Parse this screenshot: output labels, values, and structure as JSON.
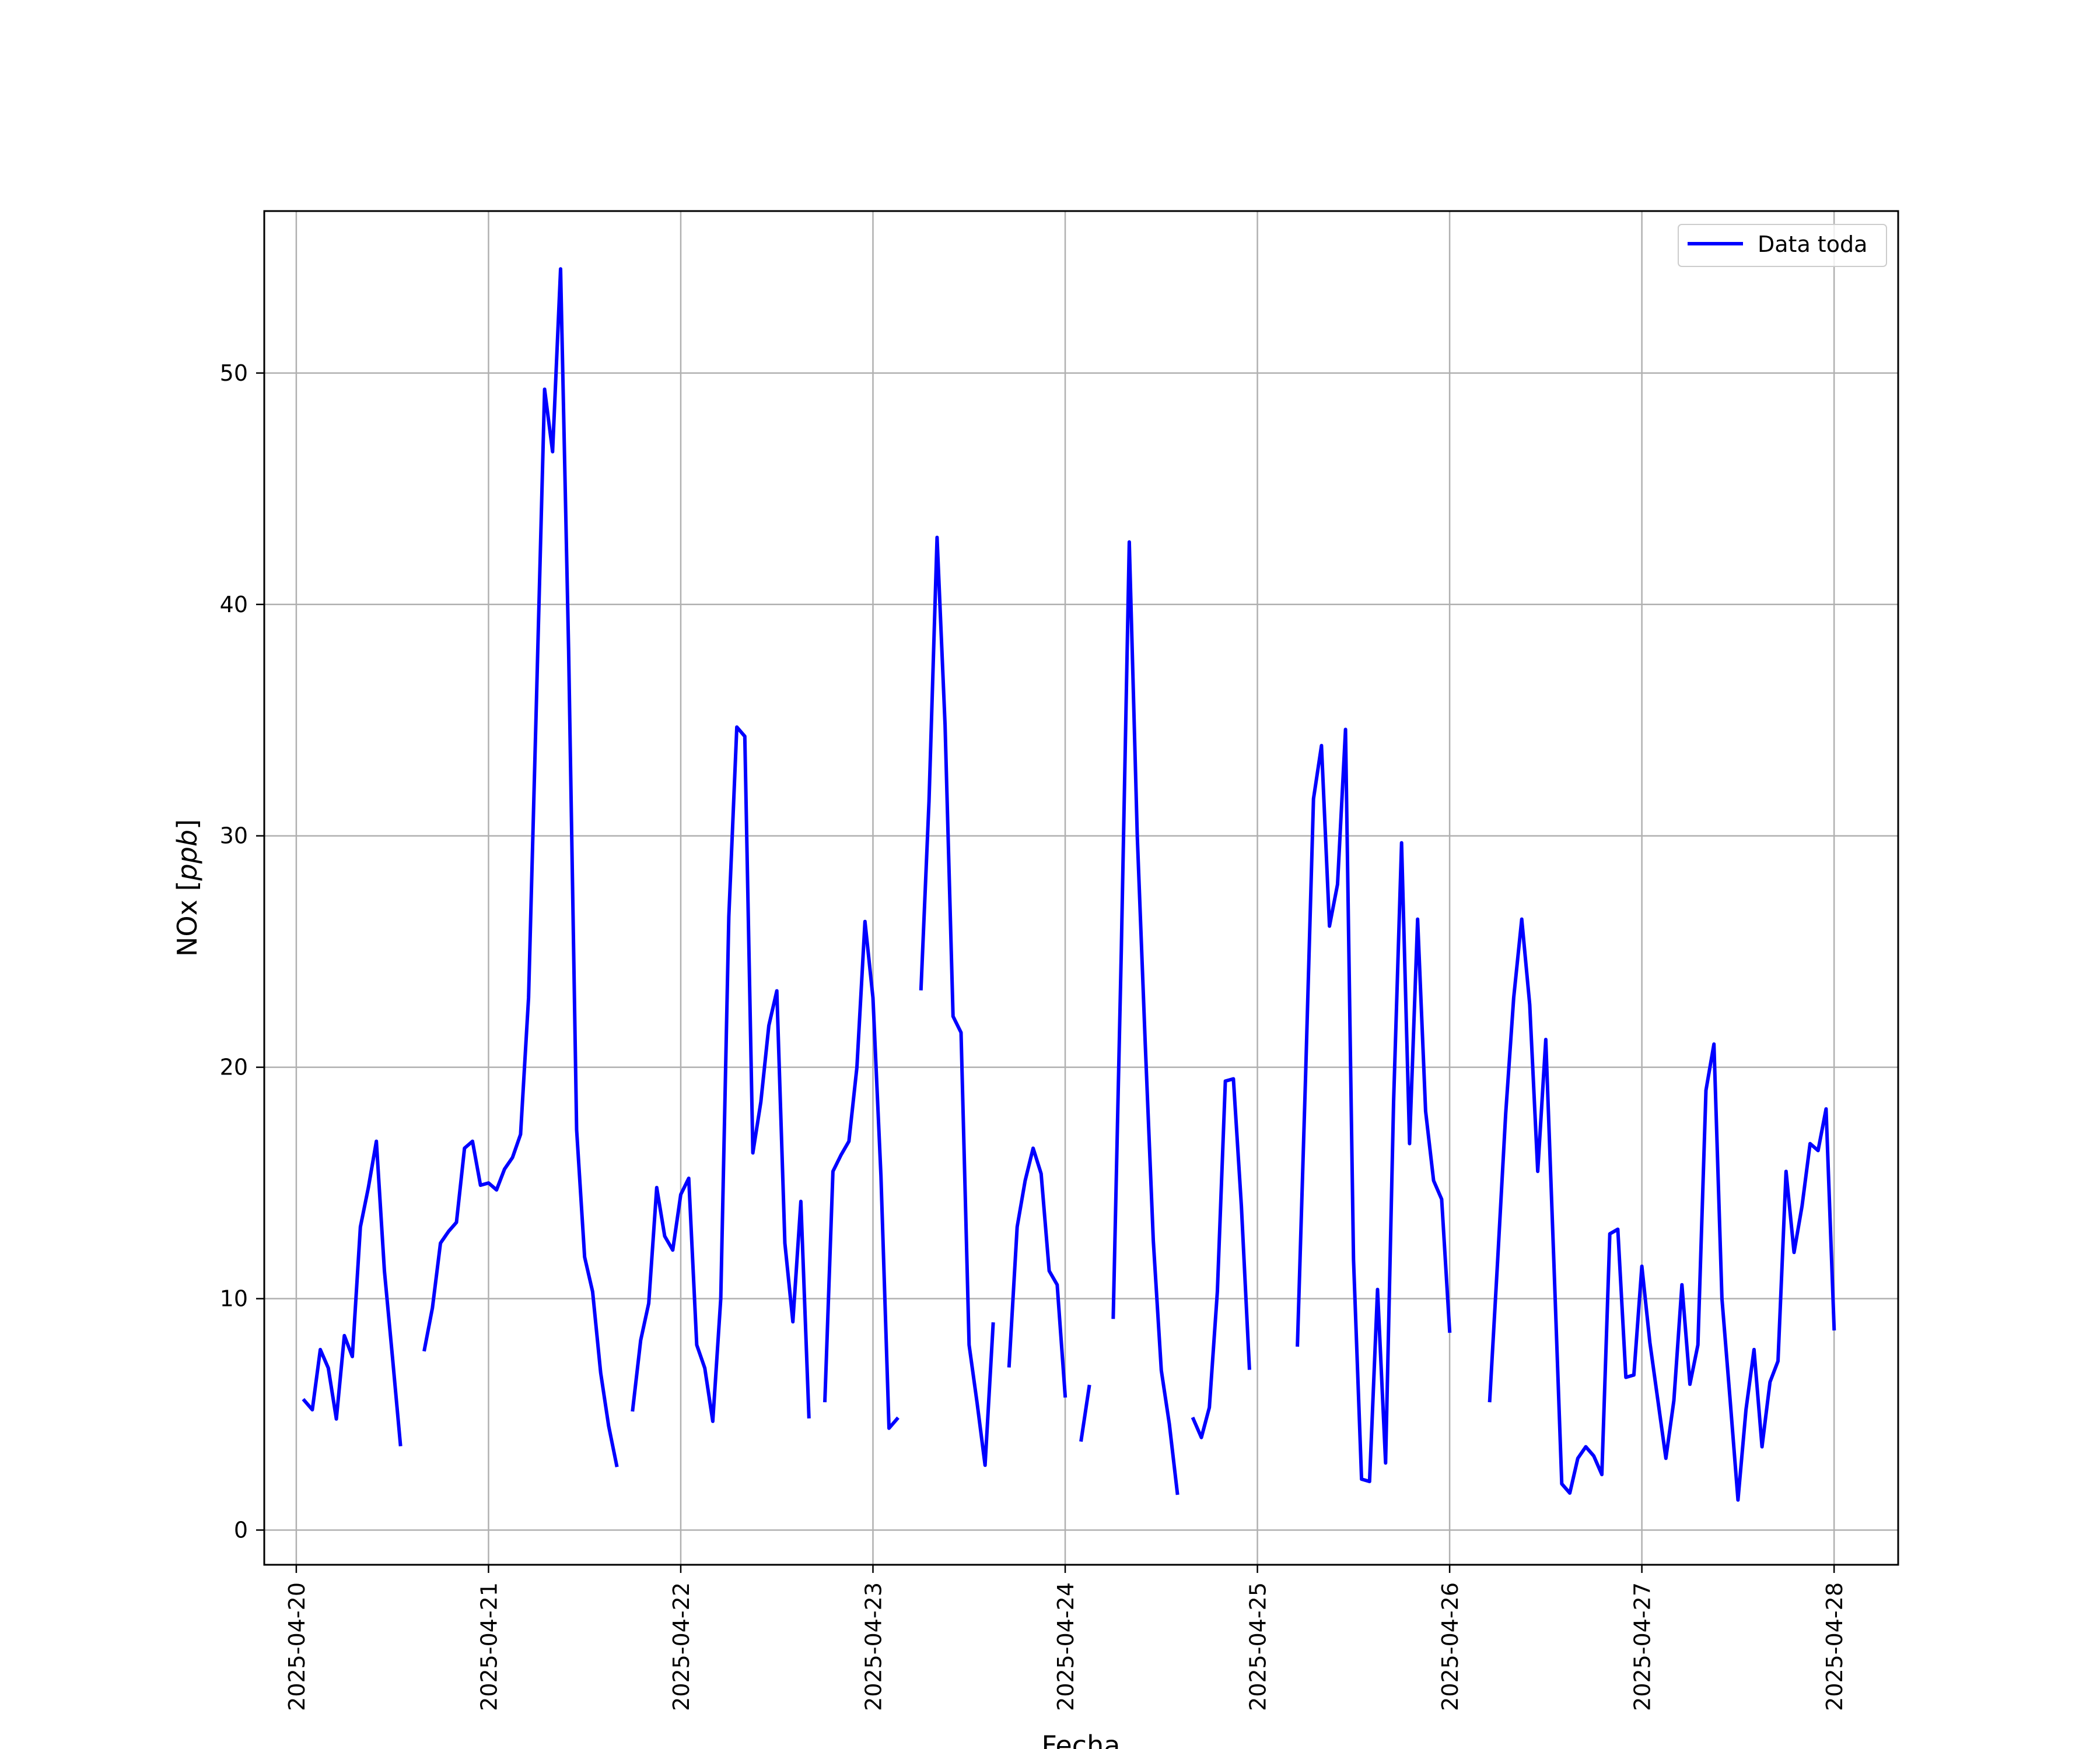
{
  "chart_data": {
    "type": "line",
    "title": "",
    "xlabel": "Fecha",
    "ylabel": "NOx [ppb]",
    "ylabel_parts": {
      "main": "NOx ",
      "open": "[",
      "unit": "ppb",
      "close": "]"
    },
    "xlim": [
      "2025-04-19T20:00",
      "2025-04-28T08:00"
    ],
    "ylim": [
      -1.5,
      57
    ],
    "x_ticks": [
      "2025-04-20",
      "2025-04-21",
      "2025-04-22",
      "2025-04-23",
      "2025-04-24",
      "2025-04-25",
      "2025-04-26",
      "2025-04-27",
      "2025-04-28"
    ],
    "y_ticks": [
      0,
      10,
      20,
      30,
      40,
      50
    ],
    "grid": true,
    "legend_position": "top-right",
    "series": [
      {
        "name": "Data toda",
        "color": "#0000ff",
        "points": [
          [
            "2025-04-20T01:00",
            5.6
          ],
          [
            "2025-04-20T02:00",
            5.2
          ],
          [
            "2025-04-20T03:00",
            7.8
          ],
          [
            "2025-04-20T04:00",
            7.0
          ],
          [
            "2025-04-20T05:00",
            4.8
          ],
          [
            "2025-04-20T06:00",
            8.4
          ],
          [
            "2025-04-20T07:00",
            7.5
          ],
          [
            "2025-04-20T08:00",
            13.1
          ],
          [
            "2025-04-20T09:00",
            14.8
          ],
          [
            "2025-04-20T10:00",
            16.8
          ],
          [
            "2025-04-20T11:00",
            11.2
          ],
          [
            "2025-04-20T12:00",
            7.5
          ],
          [
            "2025-04-20T13:00",
            3.7
          ],
          [
            "2025-04-20T14:00",
            null
          ],
          [
            "2025-04-20T15:00",
            null
          ],
          [
            "2025-04-20T16:00",
            7.8
          ],
          [
            "2025-04-20T17:00",
            9.6
          ],
          [
            "2025-04-20T18:00",
            12.4
          ],
          [
            "2025-04-20T19:00",
            12.9
          ],
          [
            "2025-04-20T20:00",
            13.3
          ],
          [
            "2025-04-20T21:00",
            16.5
          ],
          [
            "2025-04-20T22:00",
            16.8
          ],
          [
            "2025-04-20T23:00",
            14.9
          ],
          [
            "2025-04-21T00:00",
            15.0
          ],
          [
            "2025-04-21T01:00",
            14.7
          ],
          [
            "2025-04-21T02:00",
            15.6
          ],
          [
            "2025-04-21T03:00",
            16.1
          ],
          [
            "2025-04-21T04:00",
            17.1
          ],
          [
            "2025-04-21T05:00",
            23.0
          ],
          [
            "2025-04-21T06:00",
            36.0
          ],
          [
            "2025-04-21T07:00",
            49.3
          ],
          [
            "2025-04-21T08:00",
            46.6
          ],
          [
            "2025-04-21T09:00",
            54.5
          ],
          [
            "2025-04-21T10:00",
            38.0
          ],
          [
            "2025-04-21T11:00",
            17.3
          ],
          [
            "2025-04-21T12:00",
            11.8
          ],
          [
            "2025-04-21T13:00",
            10.3
          ],
          [
            "2025-04-21T14:00",
            6.8
          ],
          [
            "2025-04-21T15:00",
            4.5
          ],
          [
            "2025-04-21T16:00",
            2.8
          ],
          [
            "2025-04-21T17:00",
            null
          ],
          [
            "2025-04-21T18:00",
            5.2
          ],
          [
            "2025-04-21T19:00",
            8.2
          ],
          [
            "2025-04-21T20:00",
            9.8
          ],
          [
            "2025-04-21T21:00",
            14.8
          ],
          [
            "2025-04-21T22:00",
            12.7
          ],
          [
            "2025-04-21T23:00",
            12.1
          ],
          [
            "2025-04-22T00:00",
            14.5
          ],
          [
            "2025-04-22T01:00",
            15.2
          ],
          [
            "2025-04-22T02:00",
            8.0
          ],
          [
            "2025-04-22T03:00",
            7.0
          ],
          [
            "2025-04-22T04:00",
            4.7
          ],
          [
            "2025-04-22T05:00",
            10.0
          ],
          [
            "2025-04-22T06:00",
            26.5
          ],
          [
            "2025-04-22T07:00",
            34.7
          ],
          [
            "2025-04-22T08:00",
            34.3
          ],
          [
            "2025-04-22T09:00",
            16.3
          ],
          [
            "2025-04-22T10:00",
            18.5
          ],
          [
            "2025-04-22T11:00",
            21.8
          ],
          [
            "2025-04-22T12:00",
            23.3
          ],
          [
            "2025-04-22T13:00",
            12.4
          ],
          [
            "2025-04-22T14:00",
            9.0
          ],
          [
            "2025-04-22T15:00",
            14.2
          ],
          [
            "2025-04-22T16:00",
            4.9
          ],
          [
            "2025-04-22T17:00",
            null
          ],
          [
            "2025-04-22T18:00",
            5.6
          ],
          [
            "2025-04-22T19:00",
            15.5
          ],
          [
            "2025-04-22T20:00",
            16.2
          ],
          [
            "2025-04-22T21:00",
            16.8
          ],
          [
            "2025-04-22T22:00",
            20.0
          ],
          [
            "2025-04-22T23:00",
            26.3
          ],
          [
            "2025-04-23T00:00",
            23.0
          ],
          [
            "2025-04-23T01:00",
            15.3
          ],
          [
            "2025-04-23T02:00",
            4.4
          ],
          [
            "2025-04-23T03:00",
            4.8
          ],
          [
            "2025-04-23T04:00",
            null
          ],
          [
            "2025-04-23T05:00",
            null
          ],
          [
            "2025-04-23T06:00",
            23.4
          ],
          [
            "2025-04-23T07:00",
            31.5
          ],
          [
            "2025-04-23T08:00",
            42.9
          ],
          [
            "2025-04-23T09:00",
            34.8
          ],
          [
            "2025-04-23T10:00",
            22.2
          ],
          [
            "2025-04-23T11:00",
            21.5
          ],
          [
            "2025-04-23T12:00",
            8.0
          ],
          [
            "2025-04-23T13:00",
            5.5
          ],
          [
            "2025-04-23T14:00",
            2.8
          ],
          [
            "2025-04-23T15:00",
            8.9
          ],
          [
            "2025-04-23T16:00",
            null
          ],
          [
            "2025-04-23T17:00",
            7.1
          ],
          [
            "2025-04-23T18:00",
            13.1
          ],
          [
            "2025-04-23T19:00",
            15.1
          ],
          [
            "2025-04-23T20:00",
            16.5
          ],
          [
            "2025-04-23T21:00",
            15.4
          ],
          [
            "2025-04-23T22:00",
            11.2
          ],
          [
            "2025-04-23T23:00",
            10.6
          ],
          [
            "2025-04-24T00:00",
            5.8
          ],
          [
            "2025-04-24T01:00",
            null
          ],
          [
            "2025-04-24T02:00",
            3.9
          ],
          [
            "2025-04-24T03:00",
            6.2
          ],
          [
            "2025-04-24T04:00",
            null
          ],
          [
            "2025-04-24T05:00",
            null
          ],
          [
            "2025-04-24T06:00",
            9.2
          ],
          [
            "2025-04-24T07:00",
            25.0
          ],
          [
            "2025-04-24T08:00",
            42.7
          ],
          [
            "2025-04-24T09:00",
            30.0
          ],
          [
            "2025-04-24T10:00",
            21.0
          ],
          [
            "2025-04-24T11:00",
            12.5
          ],
          [
            "2025-04-24T12:00",
            6.9
          ],
          [
            "2025-04-24T13:00",
            4.6
          ],
          [
            "2025-04-24T14:00",
            1.6
          ],
          [
            "2025-04-24T15:00",
            null
          ],
          [
            "2025-04-24T16:00",
            4.8
          ],
          [
            "2025-04-24T17:00",
            4.0
          ],
          [
            "2025-04-24T18:00",
            5.3
          ],
          [
            "2025-04-24T19:00",
            10.3
          ],
          [
            "2025-04-24T20:00",
            19.4
          ],
          [
            "2025-04-24T21:00",
            19.5
          ],
          [
            "2025-04-24T22:00",
            14.0
          ],
          [
            "2025-04-24T23:00",
            7.0
          ],
          [
            "2025-04-25T00:00",
            null
          ],
          [
            "2025-04-25T01:00",
            null
          ],
          [
            "2025-04-25T02:00",
            null
          ],
          [
            "2025-04-25T03:00",
            null
          ],
          [
            "2025-04-25T04:00",
            null
          ],
          [
            "2025-04-25T05:00",
            8.0
          ],
          [
            "2025-04-25T06:00",
            19.5
          ],
          [
            "2025-04-25T07:00",
            31.6
          ],
          [
            "2025-04-25T08:00",
            33.9
          ],
          [
            "2025-04-25T09:00",
            26.1
          ],
          [
            "2025-04-25T10:00",
            27.9
          ],
          [
            "2025-04-25T11:00",
            34.6
          ],
          [
            "2025-04-25T12:00",
            11.7
          ],
          [
            "2025-04-25T13:00",
            2.2
          ],
          [
            "2025-04-25T14:00",
            2.1
          ],
          [
            "2025-04-25T15:00",
            10.4
          ],
          [
            "2025-04-25T16:00",
            2.9
          ],
          [
            "2025-04-25T17:00",
            18.5
          ],
          [
            "2025-04-25T18:00",
            29.7
          ],
          [
            "2025-04-25T19:00",
            16.7
          ],
          [
            "2025-04-25T20:00",
            26.4
          ],
          [
            "2025-04-25T21:00",
            18.1
          ],
          [
            "2025-04-25T22:00",
            15.1
          ],
          [
            "2025-04-25T23:00",
            14.3
          ],
          [
            "2025-04-26T00:00",
            8.6
          ],
          [
            "2025-04-26T01:00",
            null
          ],
          [
            "2025-04-26T02:00",
            null
          ],
          [
            "2025-04-26T03:00",
            null
          ],
          [
            "2025-04-26T04:00",
            null
          ],
          [
            "2025-04-26T05:00",
            5.6
          ],
          [
            "2025-04-26T06:00",
            11.7
          ],
          [
            "2025-04-26T07:00",
            18.0
          ],
          [
            "2025-04-26T08:00",
            23.0
          ],
          [
            "2025-04-26T09:00",
            26.4
          ],
          [
            "2025-04-26T10:00",
            22.7
          ],
          [
            "2025-04-26T11:00",
            15.5
          ],
          [
            "2025-04-26T12:00",
            21.2
          ],
          [
            "2025-04-26T13:00",
            11.7
          ],
          [
            "2025-04-26T14:00",
            2.0
          ],
          [
            "2025-04-26T15:00",
            1.6
          ],
          [
            "2025-04-26T16:00",
            3.1
          ],
          [
            "2025-04-26T17:00",
            3.6
          ],
          [
            "2025-04-26T18:00",
            3.2
          ],
          [
            "2025-04-26T19:00",
            2.4
          ],
          [
            "2025-04-26T20:00",
            12.8
          ],
          [
            "2025-04-26T21:00",
            13.0
          ],
          [
            "2025-04-26T22:00",
            6.6
          ],
          [
            "2025-04-26T23:00",
            6.7
          ],
          [
            "2025-04-27T00:00",
            11.4
          ],
          [
            "2025-04-27T01:00",
            8.1
          ],
          [
            "2025-04-27T02:00",
            5.6
          ],
          [
            "2025-04-27T03:00",
            3.1
          ],
          [
            "2025-04-27T04:00",
            5.6
          ],
          [
            "2025-04-27T05:00",
            10.6
          ],
          [
            "2025-04-27T06:00",
            6.3
          ],
          [
            "2025-04-27T07:00",
            8.0
          ],
          [
            "2025-04-27T08:00",
            19.0
          ],
          [
            "2025-04-27T09:00",
            21.0
          ],
          [
            "2025-04-27T10:00",
            10.0
          ],
          [
            "2025-04-27T11:00",
            5.7
          ],
          [
            "2025-04-27T12:00",
            1.3
          ],
          [
            "2025-04-27T13:00",
            5.2
          ],
          [
            "2025-04-27T14:00",
            7.8
          ],
          [
            "2025-04-27T15:00",
            3.6
          ],
          [
            "2025-04-27T16:00",
            6.4
          ],
          [
            "2025-04-27T17:00",
            7.3
          ],
          [
            "2025-04-27T18:00",
            15.5
          ],
          [
            "2025-04-27T19:00",
            12.0
          ],
          [
            "2025-04-27T20:00",
            14.0
          ],
          [
            "2025-04-27T21:00",
            16.7
          ],
          [
            "2025-04-27T22:00",
            16.4
          ],
          [
            "2025-04-27T23:00",
            18.2
          ],
          [
            "2025-04-28T00:00",
            8.7
          ]
        ]
      }
    ]
  }
}
